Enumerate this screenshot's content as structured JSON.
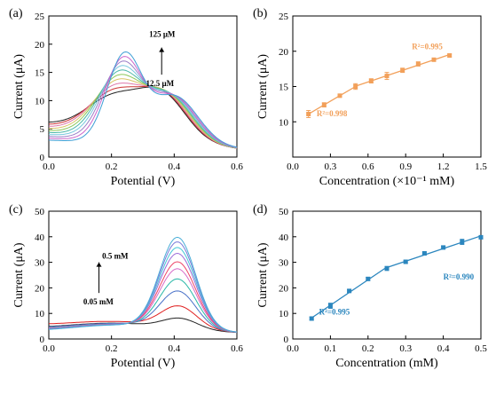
{
  "colors": {
    "orange": "#f2a05a",
    "blue": "#2b86be",
    "curves_a": [
      "#222222",
      "#cc3333",
      "#dd77aa",
      "#d9c466",
      "#8cc85a",
      "#4cb7a8",
      "#77c8de",
      "#9b80c8",
      "#cc66cc",
      "#3f9fd6"
    ],
    "curves_c": [
      "#222222",
      "#e02020",
      "#4a72c8",
      "#2ab8a8",
      "#d86cc8",
      "#ee4466",
      "#9a6ad8",
      "#44c8d8",
      "#7a7ad8",
      "#4aaed8"
    ]
  },
  "chart_data": [
    {
      "panel": "(a)",
      "type": "line",
      "xlabel": "Potential (V)",
      "ylabel": "Current (μA)",
      "xlim": [
        0.0,
        0.6
      ],
      "ylim": [
        0,
        25
      ],
      "xticks": [
        "0.0",
        "0.2",
        "0.4",
        "0.6"
      ],
      "yticks": [
        "0",
        "5",
        "10",
        "15",
        "20",
        "25"
      ],
      "annotations": [
        "125 μM",
        "12.5 μM"
      ],
      "curve_params": {
        "x": [
          0.0,
          0.6
        ],
        "peak1_x": [
          0.2,
          0.24
        ],
        "peak1_y": [
          11.2,
          19.4
        ],
        "peak2_x": [
          0.36,
          0.4
        ],
        "peak2_y": [
          11.4,
          11.9
        ],
        "start_y": [
          5.9,
          3.0
        ],
        "end_y": 1.5,
        "count": 10
      }
    },
    {
      "panel": "(b)",
      "type": "scatter",
      "xlabel": "Concentration (×10⁻¹ mM)",
      "ylabel": "Current (μA)",
      "xlim": [
        0.0,
        1.5
      ],
      "ylim": [
        5,
        25
      ],
      "xticks": [
        "0.0",
        "0.3",
        "0.6",
        "0.9",
        "1.2",
        "1.5"
      ],
      "yticks": [
        "10",
        "15",
        "20",
        "25"
      ],
      "x": [
        0.125,
        0.25,
        0.375,
        0.5,
        0.625,
        0.75,
        0.875,
        1.0,
        1.125,
        1.25
      ],
      "y": [
        11.1,
        12.4,
        13.7,
        15.0,
        15.8,
        16.5,
        17.3,
        18.2,
        18.8,
        19.4
      ],
      "err": [
        0.5,
        0.3,
        0.2,
        0.4,
        0.3,
        0.5,
        0.3,
        0.3,
        0.2,
        0.2
      ],
      "fits": [
        {
          "label": "R²=0.998",
          "x": [
            0.125,
            0.5
          ]
        },
        {
          "label": "R²=0.995",
          "x": [
            0.5,
            1.25
          ]
        }
      ]
    },
    {
      "panel": "(c)",
      "type": "line",
      "xlabel": "Potential (V)",
      "ylabel": "Current (μA)",
      "xlim": [
        0.0,
        0.6
      ],
      "ylim": [
        0,
        50
      ],
      "xticks": [
        "0.0",
        "0.2",
        "0.4",
        "0.6"
      ],
      "yticks": [
        "0",
        "10",
        "20",
        "30",
        "40",
        "50"
      ],
      "annotations": [
        "0.5 mM",
        "0.05 mM"
      ],
      "curve_params": {
        "peak_x": 0.41,
        "peak_y": [
          8.2,
          13.0,
          18.8,
          23.5,
          27.5,
          30.2,
          33.5,
          35.8,
          38.0,
          39.8
        ],
        "start_y": [
          4.2,
          5.2,
          4.0,
          3.6,
          3.5,
          3.4,
          3.3,
          3.2,
          3.1,
          3.0
        ],
        "end_y": 2.5
      }
    },
    {
      "panel": "(d)",
      "type": "scatter",
      "xlabel": "Concentration (mM)",
      "ylabel": "Current (μA)",
      "xlim": [
        0.0,
        0.5
      ],
      "ylim": [
        0,
        50
      ],
      "xticks": [
        "0.0",
        "0.1",
        "0.2",
        "0.3",
        "0.4",
        "0.5"
      ],
      "yticks": [
        "0",
        "10",
        "20",
        "30",
        "40",
        "50"
      ],
      "x": [
        0.05,
        0.1,
        0.15,
        0.2,
        0.25,
        0.3,
        0.35,
        0.4,
        0.45,
        0.5
      ],
      "y": [
        8.0,
        13.0,
        18.8,
        23.5,
        27.6,
        30.2,
        33.5,
        35.8,
        38.0,
        39.8
      ],
      "err": [
        0.6,
        1.0,
        0.5,
        0.6,
        0.8,
        0.6,
        0.5,
        0.6,
        1.0,
        0.6
      ],
      "fits": [
        {
          "label": "R²=0.995",
          "x": [
            0.05,
            0.25
          ]
        },
        {
          "label": "R²=0.990",
          "x": [
            0.25,
            0.5
          ]
        }
      ]
    }
  ]
}
